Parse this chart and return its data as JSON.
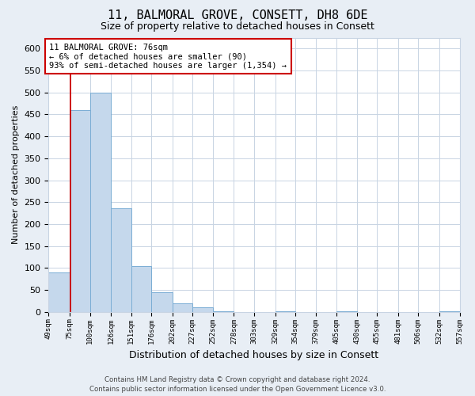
{
  "title": "11, BALMORAL GROVE, CONSETT, DH8 6DE",
  "subtitle": "Size of property relative to detached houses in Consett",
  "xlabel": "Distribution of detached houses by size in Consett",
  "ylabel": "Number of detached properties",
  "bar_edges": [
    49,
    75,
    100,
    126,
    151,
    176,
    202,
    227,
    252,
    278,
    303,
    329,
    354,
    379,
    405,
    430,
    455,
    481,
    506,
    532,
    557
  ],
  "bar_heights": [
    90,
    460,
    500,
    236,
    105,
    45,
    20,
    10,
    2,
    0,
    0,
    2,
    0,
    0,
    2,
    0,
    0,
    0,
    0,
    2
  ],
  "bar_color": "#c5d8ec",
  "bar_edge_color": "#7aadd4",
  "vline_x": 76,
  "vline_color": "#cc0000",
  "annotation_line1": "11 BALMORAL GROVE: 76sqm",
  "annotation_line2": "← 6% of detached houses are smaller (90)",
  "annotation_line3": "93% of semi-detached houses are larger (1,354) →",
  "annotation_box_color": "#ffffff",
  "annotation_box_edgecolor": "#cc0000",
  "ylim": [
    0,
    625
  ],
  "yticks": [
    0,
    50,
    100,
    150,
    200,
    250,
    300,
    350,
    400,
    450,
    500,
    550,
    600
  ],
  "tick_labels": [
    "49sqm",
    "75sqm",
    "100sqm",
    "126sqm",
    "151sqm",
    "176sqm",
    "202sqm",
    "227sqm",
    "252sqm",
    "278sqm",
    "303sqm",
    "329sqm",
    "354sqm",
    "379sqm",
    "405sqm",
    "430sqm",
    "455sqm",
    "481sqm",
    "506sqm",
    "532sqm",
    "557sqm"
  ],
  "footer_text": "Contains HM Land Registry data © Crown copyright and database right 2024.\nContains public sector information licensed under the Open Government Licence v3.0.",
  "background_color": "#e8eef5",
  "plot_background_color": "#ffffff",
  "grid_color": "#c8d4e3"
}
